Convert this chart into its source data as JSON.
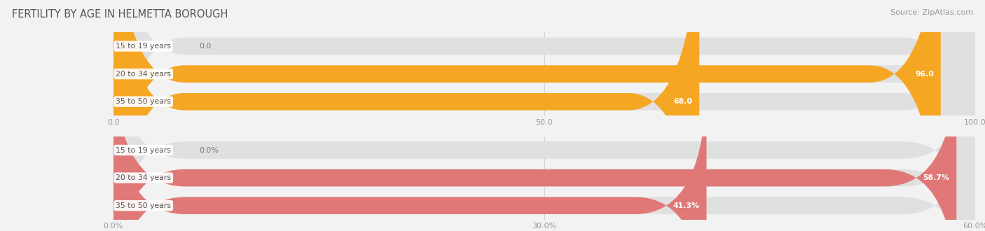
{
  "title": "FERTILITY BY AGE IN HELMETTA BOROUGH",
  "source": "Source: ZipAtlas.com",
  "fig_bg": "#f2f2f2",
  "top_chart": {
    "categories": [
      "15 to 19 years",
      "20 to 34 years",
      "35 to 50 years"
    ],
    "values": [
      0.0,
      96.0,
      68.0
    ],
    "value_labels": [
      "0.0",
      "96.0",
      "68.0"
    ],
    "xlim": [
      0,
      100
    ],
    "xticks": [
      0.0,
      50.0,
      100.0
    ],
    "xtick_labels": [
      "0.0",
      "50.0",
      "100.0"
    ],
    "bar_color": "#f5a623",
    "bar_bg_color": "#e0e0e0",
    "bar_height": 0.62
  },
  "bottom_chart": {
    "categories": [
      "15 to 19 years",
      "20 to 34 years",
      "35 to 50 years"
    ],
    "values": [
      0.0,
      58.7,
      41.3
    ],
    "value_labels": [
      "0.0%",
      "58.7%",
      "41.3%"
    ],
    "xlim": [
      0,
      60
    ],
    "xticks": [
      0.0,
      30.0,
      60.0
    ],
    "xtick_labels": [
      "0.0%",
      "30.0%",
      "60.0%"
    ],
    "bar_color": "#e07878",
    "bar_bg_color": "#e0e0e0",
    "bar_height": 0.62
  }
}
